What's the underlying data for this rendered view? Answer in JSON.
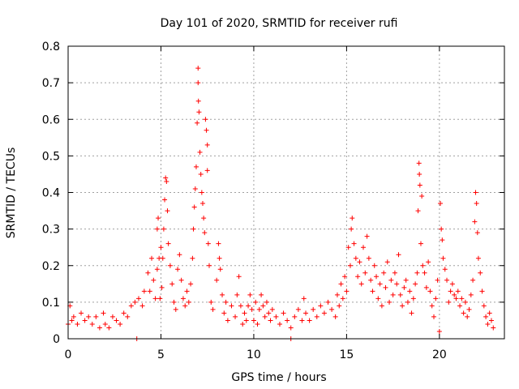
{
  "chart_data": {
    "type": "scatter",
    "title": "Day 101 of 2020, SRMTID for receiver rufi",
    "xlabel": "GPS time / hours",
    "ylabel": "SRMTID / TECUs",
    "xlim": [
      0,
      23.5
    ],
    "ylim": [
      0,
      0.8
    ],
    "x_ticks": [
      0,
      5,
      10,
      15,
      20
    ],
    "x_tick_labels": [
      "0",
      "5",
      "10",
      "15",
      "20"
    ],
    "y_ticks": [
      0,
      0.1,
      0.2,
      0.3,
      0.4,
      0.5,
      0.6,
      0.7,
      0.8
    ],
    "y_tick_labels": [
      "0",
      "0.1",
      "0.2",
      "0.3",
      "0.4",
      "0.5",
      "0.6",
      "0.7",
      "0.8"
    ],
    "grid": true,
    "marker": "plus",
    "marker_color": "#ff0000",
    "series": [
      {
        "name": "SRMTID",
        "points": [
          [
            0.0,
            0.04
          ],
          [
            0.1,
            0.09
          ],
          [
            0.2,
            0.05
          ],
          [
            0.3,
            0.06
          ],
          [
            0.5,
            0.04
          ],
          [
            0.7,
            0.07
          ],
          [
            0.9,
            0.05
          ],
          [
            1.1,
            0.06
          ],
          [
            1.3,
            0.04
          ],
          [
            1.5,
            0.06
          ],
          [
            1.7,
            0.03
          ],
          [
            1.9,
            0.07
          ],
          [
            2.0,
            0.04
          ],
          [
            2.2,
            0.03
          ],
          [
            2.4,
            0.06
          ],
          [
            2.6,
            0.05
          ],
          [
            2.8,
            0.04
          ],
          [
            3.0,
            0.07
          ],
          [
            3.2,
            0.06
          ],
          [
            3.4,
            0.09
          ],
          [
            3.6,
            0.1
          ],
          [
            3.7,
            0.0
          ],
          [
            3.8,
            0.11
          ],
          [
            4.0,
            0.09
          ],
          [
            4.1,
            0.13
          ],
          [
            4.3,
            0.18
          ],
          [
            4.4,
            0.13
          ],
          [
            4.5,
            0.22
          ],
          [
            4.6,
            0.16
          ],
          [
            4.7,
            0.11
          ],
          [
            4.8,
            0.3
          ],
          [
            4.8,
            0.19
          ],
          [
            4.85,
            0.33
          ],
          [
            4.9,
            0.22
          ],
          [
            4.95,
            0.11
          ],
          [
            5.0,
            0.25
          ],
          [
            5.05,
            0.14
          ],
          [
            5.1,
            0.22
          ],
          [
            5.15,
            0.3
          ],
          [
            5.2,
            0.38
          ],
          [
            5.25,
            0.44
          ],
          [
            5.3,
            0.43
          ],
          [
            5.35,
            0.35
          ],
          [
            5.4,
            0.26
          ],
          [
            5.5,
            0.2
          ],
          [
            5.6,
            0.15
          ],
          [
            5.7,
            0.1
          ],
          [
            5.8,
            0.08
          ],
          [
            5.9,
            0.19
          ],
          [
            6.0,
            0.23
          ],
          [
            6.1,
            0.16
          ],
          [
            6.2,
            0.11
          ],
          [
            6.3,
            0.09
          ],
          [
            6.4,
            0.13
          ],
          [
            6.5,
            0.1
          ],
          [
            6.6,
            0.15
          ],
          [
            6.7,
            0.22
          ],
          [
            6.75,
            0.3
          ],
          [
            6.8,
            0.36
          ],
          [
            6.85,
            0.41
          ],
          [
            6.9,
            0.47
          ],
          [
            6.95,
            0.59
          ],
          [
            7.0,
            0.74
          ],
          [
            7.0,
            0.7
          ],
          [
            7.02,
            0.65
          ],
          [
            7.05,
            0.62
          ],
          [
            7.1,
            0.51
          ],
          [
            7.15,
            0.45
          ],
          [
            7.2,
            0.4
          ],
          [
            7.25,
            0.37
          ],
          [
            7.3,
            0.33
          ],
          [
            7.35,
            0.29
          ],
          [
            7.4,
            0.6
          ],
          [
            7.45,
            0.57
          ],
          [
            7.5,
            0.53
          ],
          [
            7.5,
            0.46
          ],
          [
            7.55,
            0.26
          ],
          [
            7.6,
            0.2
          ],
          [
            7.7,
            0.1
          ],
          [
            7.8,
            0.08
          ],
          [
            8.0,
            0.16
          ],
          [
            8.1,
            0.26
          ],
          [
            8.15,
            0.22
          ],
          [
            8.2,
            0.19
          ],
          [
            8.3,
            0.12
          ],
          [
            8.4,
            0.07
          ],
          [
            8.5,
            0.1
          ],
          [
            8.6,
            0.05
          ],
          [
            8.8,
            0.09
          ],
          [
            9.0,
            0.06
          ],
          [
            9.1,
            0.12
          ],
          [
            9.2,
            0.17
          ],
          [
            9.3,
            0.09
          ],
          [
            9.4,
            0.04
          ],
          [
            9.5,
            0.07
          ],
          [
            9.6,
            0.05
          ],
          [
            9.7,
            0.09
          ],
          [
            9.8,
            0.12
          ],
          [
            9.9,
            0.08
          ],
          [
            10.0,
            0.05
          ],
          [
            10.1,
            0.1
          ],
          [
            10.2,
            0.04
          ],
          [
            10.3,
            0.08
          ],
          [
            10.4,
            0.12
          ],
          [
            10.5,
            0.09
          ],
          [
            10.6,
            0.06
          ],
          [
            10.7,
            0.1
          ],
          [
            10.8,
            0.07
          ],
          [
            10.9,
            0.05
          ],
          [
            11.0,
            0.08
          ],
          [
            11.2,
            0.06
          ],
          [
            11.4,
            0.04
          ],
          [
            11.6,
            0.07
          ],
          [
            11.8,
            0.05
          ],
          [
            12.0,
            0.03
          ],
          [
            12.0,
            0.0
          ],
          [
            12.2,
            0.06
          ],
          [
            12.4,
            0.08
          ],
          [
            12.6,
            0.05
          ],
          [
            12.7,
            0.11
          ],
          [
            12.8,
            0.07
          ],
          [
            13.0,
            0.05
          ],
          [
            13.2,
            0.08
          ],
          [
            13.4,
            0.06
          ],
          [
            13.6,
            0.09
          ],
          [
            13.8,
            0.07
          ],
          [
            14.0,
            0.1
          ],
          [
            14.2,
            0.08
          ],
          [
            14.4,
            0.06
          ],
          [
            14.5,
            0.12
          ],
          [
            14.6,
            0.09
          ],
          [
            14.7,
            0.15
          ],
          [
            14.8,
            0.11
          ],
          [
            14.9,
            0.17
          ],
          [
            15.0,
            0.13
          ],
          [
            15.1,
            0.25
          ],
          [
            15.2,
            0.2
          ],
          [
            15.25,
            0.3
          ],
          [
            15.3,
            0.33
          ],
          [
            15.4,
            0.26
          ],
          [
            15.5,
            0.22
          ],
          [
            15.6,
            0.17
          ],
          [
            15.7,
            0.21
          ],
          [
            15.8,
            0.15
          ],
          [
            15.9,
            0.25
          ],
          [
            16.0,
            0.18
          ],
          [
            16.1,
            0.28
          ],
          [
            16.2,
            0.22
          ],
          [
            16.3,
            0.16
          ],
          [
            16.4,
            0.13
          ],
          [
            16.5,
            0.2
          ],
          [
            16.6,
            0.17
          ],
          [
            16.7,
            0.11
          ],
          [
            16.8,
            0.15
          ],
          [
            16.9,
            0.09
          ],
          [
            17.0,
            0.18
          ],
          [
            17.1,
            0.14
          ],
          [
            17.2,
            0.21
          ],
          [
            17.3,
            0.1
          ],
          [
            17.4,
            0.16
          ],
          [
            17.5,
            0.12
          ],
          [
            17.6,
            0.18
          ],
          [
            17.7,
            0.15
          ],
          [
            17.8,
            0.23
          ],
          [
            17.9,
            0.12
          ],
          [
            18.0,
            0.09
          ],
          [
            18.1,
            0.14
          ],
          [
            18.2,
            0.16
          ],
          [
            18.3,
            0.1
          ],
          [
            18.4,
            0.13
          ],
          [
            18.5,
            0.07
          ],
          [
            18.6,
            0.11
          ],
          [
            18.7,
            0.15
          ],
          [
            18.8,
            0.18
          ],
          [
            18.85,
            0.35
          ],
          [
            18.9,
            0.48
          ],
          [
            18.92,
            0.45
          ],
          [
            18.95,
            0.42
          ],
          [
            19.0,
            0.26
          ],
          [
            19.05,
            0.39
          ],
          [
            19.1,
            0.2
          ],
          [
            19.2,
            0.18
          ],
          [
            19.3,
            0.14
          ],
          [
            19.4,
            0.21
          ],
          [
            19.5,
            0.13
          ],
          [
            19.6,
            0.09
          ],
          [
            19.7,
            0.06
          ],
          [
            19.8,
            0.11
          ],
          [
            19.9,
            0.16
          ],
          [
            20.0,
            0.02
          ],
          [
            20.05,
            0.37
          ],
          [
            20.1,
            0.3
          ],
          [
            20.15,
            0.27
          ],
          [
            20.2,
            0.22
          ],
          [
            20.3,
            0.19
          ],
          [
            20.4,
            0.16
          ],
          [
            20.5,
            0.1
          ],
          [
            20.6,
            0.13
          ],
          [
            20.7,
            0.15
          ],
          [
            20.8,
            0.12
          ],
          [
            20.9,
            0.11
          ],
          [
            21.0,
            0.13
          ],
          [
            21.1,
            0.09
          ],
          [
            21.2,
            0.11
          ],
          [
            21.3,
            0.07
          ],
          [
            21.4,
            0.1
          ],
          [
            21.5,
            0.06
          ],
          [
            21.6,
            0.08
          ],
          [
            21.7,
            0.12
          ],
          [
            21.8,
            0.16
          ],
          [
            21.9,
            0.32
          ],
          [
            21.95,
            0.4
          ],
          [
            22.0,
            0.37
          ],
          [
            22.05,
            0.29
          ],
          [
            22.1,
            0.22
          ],
          [
            22.2,
            0.18
          ],
          [
            22.3,
            0.13
          ],
          [
            22.4,
            0.09
          ],
          [
            22.5,
            0.06
          ],
          [
            22.6,
            0.04
          ],
          [
            22.7,
            0.07
          ],
          [
            22.8,
            0.05
          ],
          [
            22.9,
            0.03
          ]
        ]
      }
    ]
  }
}
